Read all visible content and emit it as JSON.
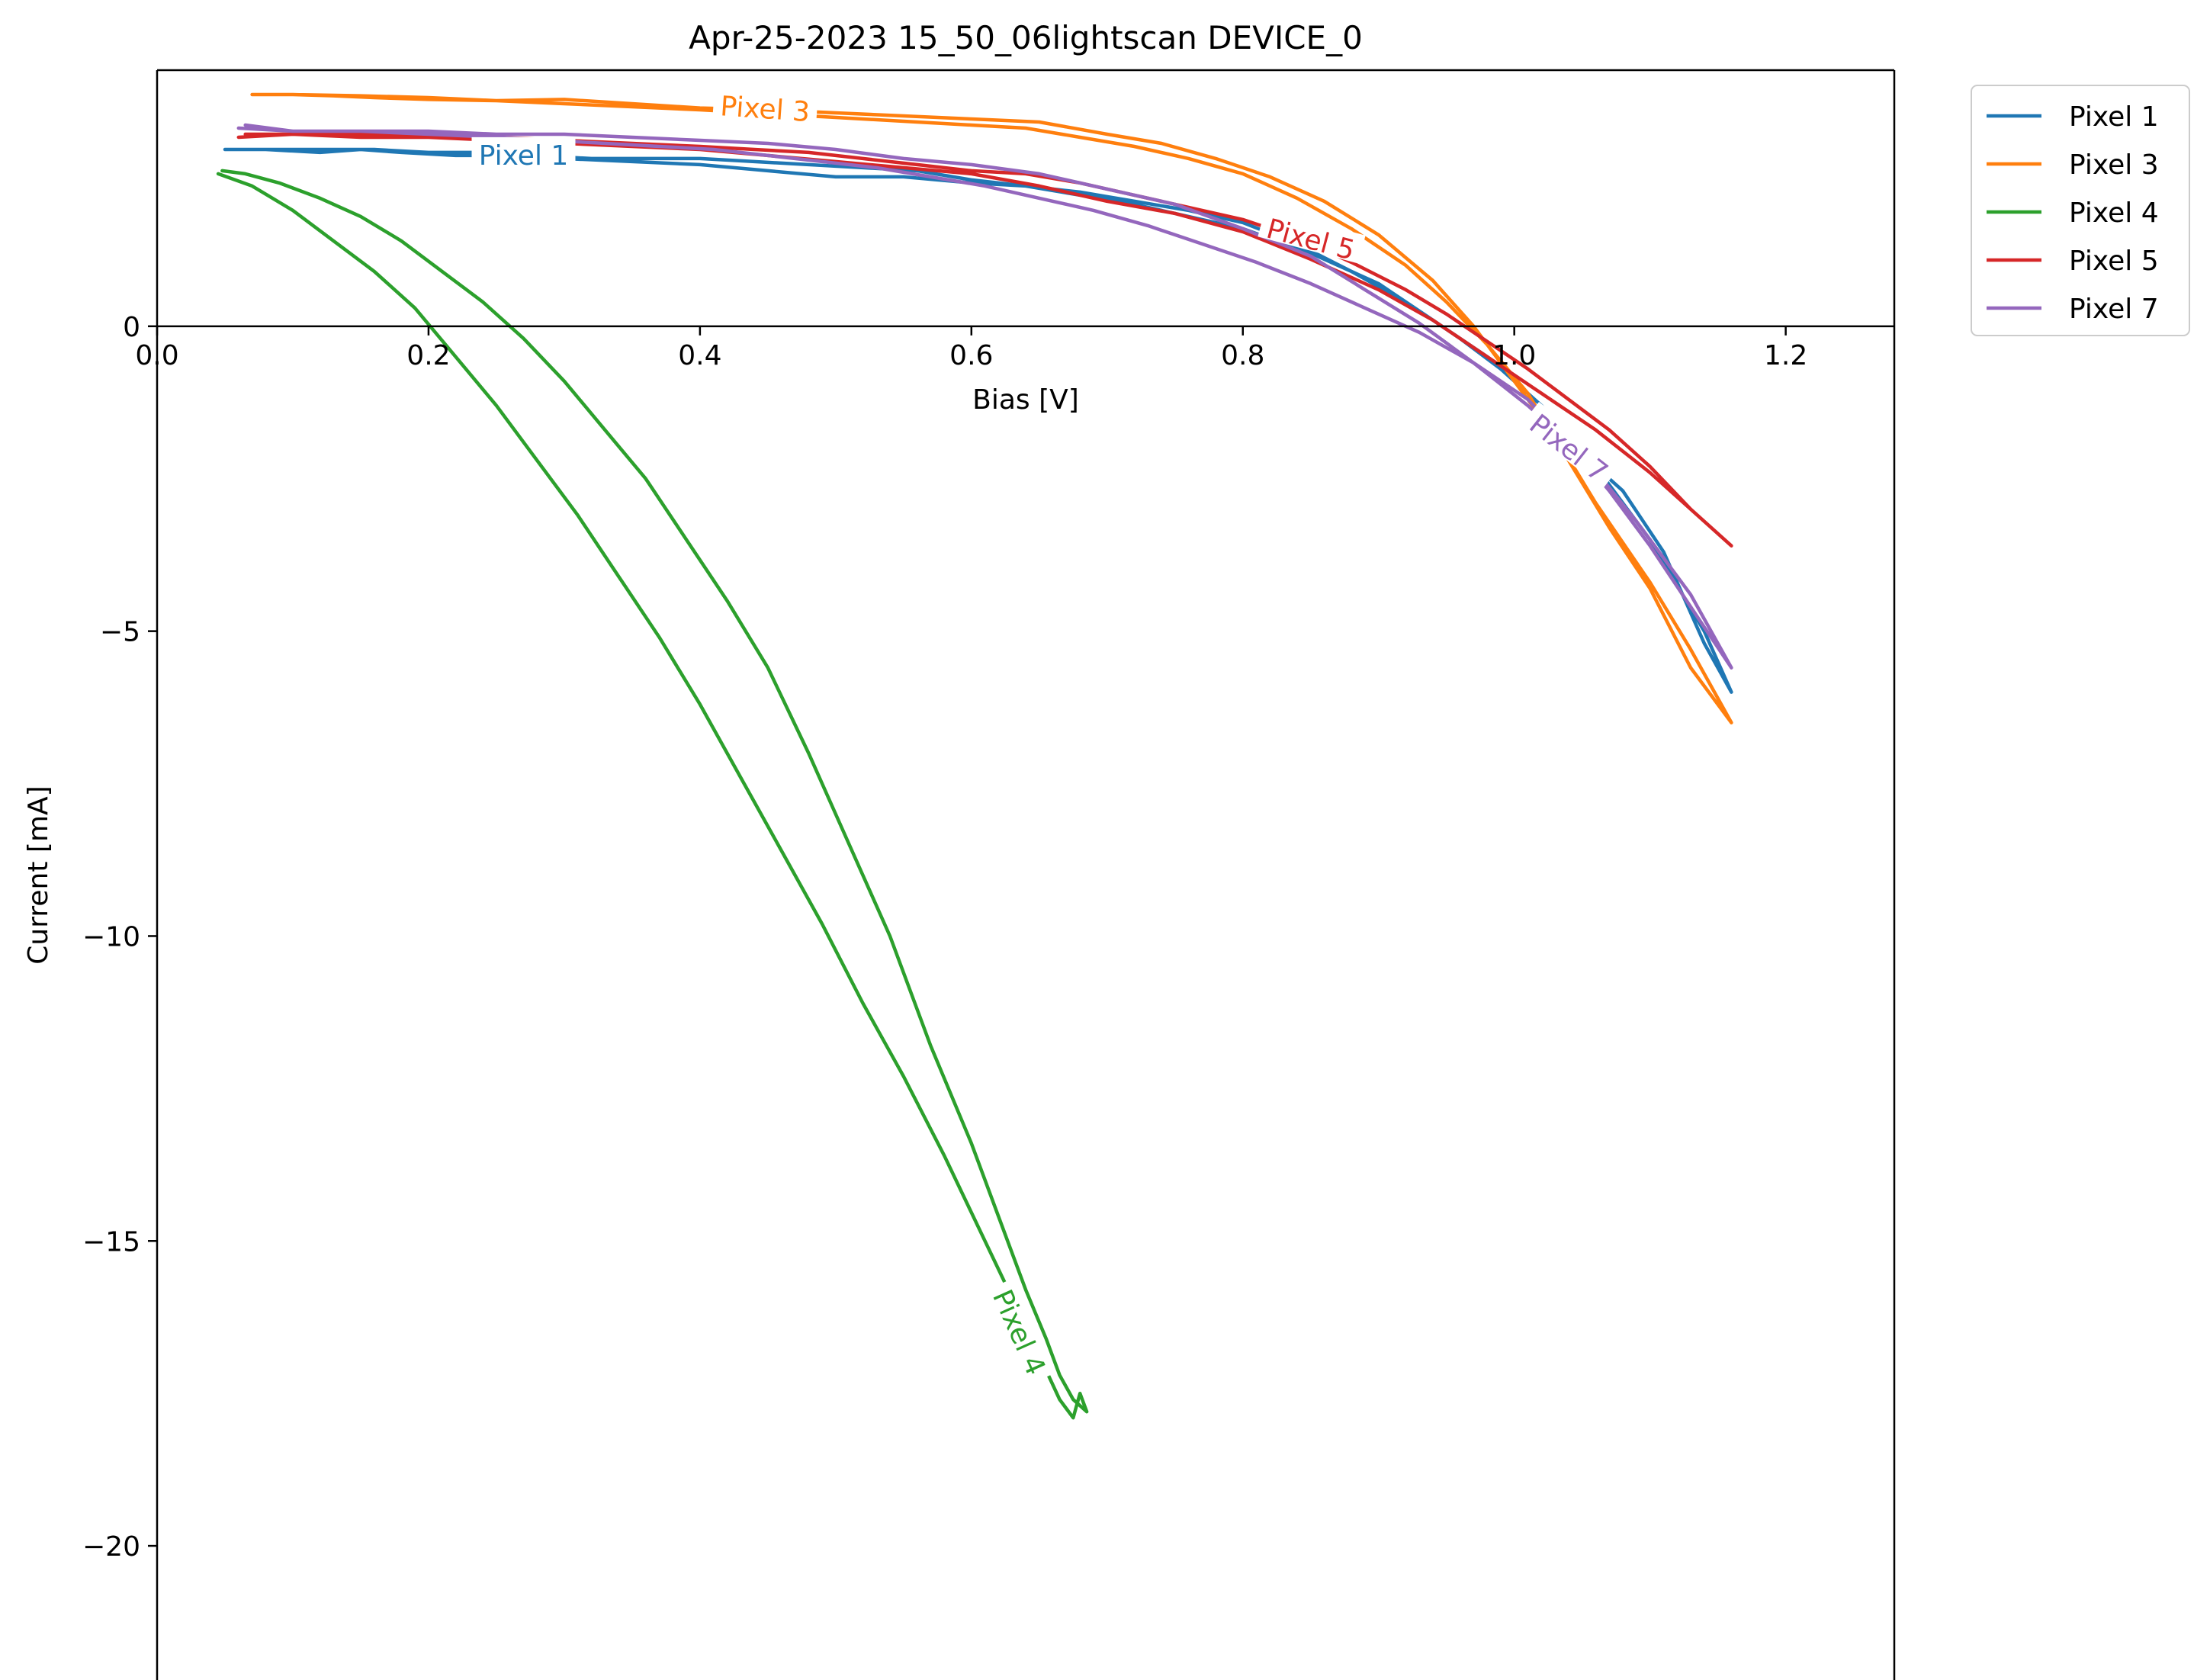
{
  "chart_data": {
    "type": "line",
    "title": "Apr-25-2023 15_50_06lightscan DEVICE_0",
    "xlabel": "Bias [V]",
    "ylabel": "Current [mA]",
    "xlim": [
      0.0,
      1.28
    ],
    "ylim": [
      -22.2,
      4.2
    ],
    "xticks": [
      0.0,
      0.2,
      0.4,
      0.6,
      0.8,
      1.0,
      1.2
    ],
    "xtick_labels": [
      "0.0",
      "0.2",
      "0.4",
      "0.6",
      "0.8",
      "1.0",
      "1.2"
    ],
    "yticks": [
      0,
      -5,
      -10,
      -15,
      -20
    ],
    "ytick_labels": [
      "0",
      "−5",
      "−10",
      "−15",
      "−20"
    ],
    "grid": false,
    "legend_position": "outside-top-right",
    "series": [
      {
        "name": "Pixel 1",
        "color": "#1f77b4",
        "inline_label": "Pixel 1",
        "label_at": [
          0.27,
          2.8
        ],
        "label_angle": 0,
        "x": [
          0.05,
          0.08,
          0.12,
          0.15,
          0.18,
          0.22,
          0.26,
          0.3,
          0.35,
          0.4,
          0.45,
          0.5,
          0.55,
          0.6,
          0.64,
          0.68,
          0.72,
          0.76,
          0.8,
          0.85,
          0.9,
          0.94,
          0.98,
          1.02,
          1.06,
          1.1,
          1.14,
          1.16,
          1.14,
          1.11,
          1.08,
          1.05,
          1.02,
          0.99,
          0.96,
          0.92,
          0.88,
          0.84,
          0.8,
          0.76,
          0.72,
          0.68,
          0.64,
          0.6,
          0.56,
          0.52,
          0.48,
          0.44,
          0.4,
          0.36,
          0.32,
          0.28,
          0.24,
          0.2,
          0.16,
          0.12,
          0.08,
          0.055
        ],
        "y": [
          2.9,
          2.9,
          2.85,
          2.9,
          2.85,
          2.8,
          2.8,
          2.75,
          2.7,
          2.65,
          2.55,
          2.45,
          2.45,
          2.35,
          2.3,
          2.15,
          2.0,
          1.8,
          1.6,
          1.2,
          0.7,
          0.1,
          -0.5,
          -1.3,
          -2.3,
          -3.5,
          -5.0,
          -6.0,
          -5.2,
          -3.7,
          -2.7,
          -2.1,
          -1.3,
          -0.7,
          -0.2,
          0.4,
          0.9,
          1.35,
          1.7,
          1.9,
          2.05,
          2.2,
          2.3,
          2.4,
          2.55,
          2.6,
          2.65,
          2.7,
          2.75,
          2.75,
          2.75,
          2.8,
          2.85,
          2.85,
          2.9,
          2.9,
          2.9,
          2.9
        ]
      },
      {
        "name": "Pixel 3",
        "color": "#ff7f0e",
        "inline_label": "Pixel 3",
        "label_at": [
          0.448,
          3.56
        ],
        "label_angle": 4,
        "x": [
          0.07,
          0.1,
          0.13,
          0.16,
          0.2,
          0.25,
          0.3,
          0.35,
          0.4,
          0.45,
          0.5,
          0.55,
          0.6,
          0.65,
          0.7,
          0.74,
          0.78,
          0.82,
          0.86,
          0.9,
          0.94,
          0.97,
          1.0,
          1.03,
          1.06,
          1.1,
          1.13,
          1.16,
          1.13,
          1.1,
          1.07,
          1.04,
          1.01,
          0.98,
          0.95,
          0.92,
          0.88,
          0.84,
          0.8,
          0.76,
          0.72,
          0.68,
          0.64,
          0.6,
          0.56,
          0.52,
          0.48,
          0.44,
          0.4,
          0.35,
          0.3,
          0.25,
          0.2,
          0.15,
          0.1,
          0.07
        ],
        "y": [
          3.8,
          3.8,
          3.78,
          3.75,
          3.72,
          3.7,
          3.72,
          3.65,
          3.58,
          3.55,
          3.5,
          3.45,
          3.4,
          3.35,
          3.15,
          3.0,
          2.75,
          2.45,
          2.05,
          1.5,
          0.75,
          0.0,
          -0.9,
          -1.8,
          -2.9,
          -4.2,
          -5.3,
          -6.5,
          -5.6,
          -4.3,
          -3.3,
          -2.2,
          -1.1,
          -0.3,
          0.4,
          1.0,
          1.6,
          2.1,
          2.5,
          2.75,
          2.95,
          3.1,
          3.25,
          3.3,
          3.35,
          3.4,
          3.45,
          3.5,
          3.55,
          3.6,
          3.65,
          3.7,
          3.75,
          3.78,
          3.8,
          3.8
        ]
      },
      {
        "name": "Pixel 4",
        "color": "#2ca02c",
        "inline_label": "Pixel 4",
        "label_at": [
          0.635,
          -16.5
        ],
        "label_angle": 66,
        "x": [
          0.045,
          0.07,
          0.1,
          0.13,
          0.16,
          0.19,
          0.22,
          0.25,
          0.28,
          0.31,
          0.34,
          0.37,
          0.4,
          0.43,
          0.46,
          0.49,
          0.52,
          0.55,
          0.58,
          0.61,
          0.64,
          0.665,
          0.675,
          0.68,
          0.685,
          0.675,
          0.665,
          0.655,
          0.64,
          0.62,
          0.6,
          0.57,
          0.54,
          0.51,
          0.48,
          0.45,
          0.42,
          0.39,
          0.36,
          0.33,
          0.3,
          0.27,
          0.24,
          0.21,
          0.18,
          0.15,
          0.12,
          0.09,
          0.065,
          0.048
        ],
        "y": [
          2.5,
          2.3,
          1.9,
          1.4,
          0.9,
          0.3,
          -0.5,
          -1.3,
          -2.2,
          -3.1,
          -4.1,
          -5.1,
          -6.2,
          -7.4,
          -8.6,
          -9.8,
          -11.1,
          -12.3,
          -13.6,
          -15.0,
          -16.4,
          -17.6,
          -17.9,
          -17.5,
          -17.8,
          -17.6,
          -17.2,
          -16.6,
          -15.8,
          -14.6,
          -13.4,
          -11.8,
          -10.0,
          -8.5,
          -7.0,
          -5.6,
          -4.5,
          -3.5,
          -2.5,
          -1.7,
          -0.9,
          -0.2,
          0.4,
          0.9,
          1.4,
          1.8,
          2.1,
          2.35,
          2.5,
          2.55
        ]
      },
      {
        "name": "Pixel 5",
        "color": "#d62728",
        "inline_label": "Pixel 5",
        "label_at": [
          0.85,
          1.42
        ],
        "label_angle": 15,
        "x": [
          0.06,
          0.1,
          0.15,
          0.2,
          0.25,
          0.3,
          0.35,
          0.4,
          0.45,
          0.5,
          0.55,
          0.6,
          0.65,
          0.7,
          0.75,
          0.8,
          0.85,
          0.9,
          0.94,
          0.98,
          1.02,
          1.06,
          1.1,
          1.13,
          1.16,
          1.13,
          1.1,
          1.07,
          1.04,
          1.01,
          0.98,
          0.95,
          0.92,
          0.88,
          0.84,
          0.8,
          0.76,
          0.72,
          0.68,
          0.64,
          0.6,
          0.56,
          0.52,
          0.48,
          0.44,
          0.4,
          0.35,
          0.3,
          0.25,
          0.2,
          0.15,
          0.1,
          0.065
        ],
        "y": [
          3.1,
          3.15,
          3.1,
          3.1,
          3.05,
          3.0,
          2.95,
          2.9,
          2.8,
          2.7,
          2.6,
          2.5,
          2.3,
          2.05,
          1.85,
          1.55,
          1.1,
          0.6,
          0.1,
          -0.5,
          -1.1,
          -1.7,
          -2.4,
          -3.0,
          -3.6,
          -3.0,
          -2.3,
          -1.7,
          -1.2,
          -0.7,
          -0.25,
          0.2,
          0.6,
          1.05,
          1.45,
          1.75,
          1.95,
          2.15,
          2.35,
          2.5,
          2.55,
          2.65,
          2.75,
          2.85,
          2.9,
          2.95,
          3.0,
          3.05,
          3.1,
          3.1,
          3.15,
          3.15,
          3.15
        ]
      },
      {
        "name": "Pixel 7",
        "color": "#9467bd",
        "inline_label": "Pixel 7",
        "label_at": [
          1.04,
          -2.0
        ],
        "label_angle": 38,
        "x": [
          0.06,
          0.1,
          0.15,
          0.2,
          0.25,
          0.3,
          0.35,
          0.4,
          0.45,
          0.5,
          0.55,
          0.6,
          0.65,
          0.7,
          0.75,
          0.8,
          0.85,
          0.89,
          0.93,
          0.97,
          1.01,
          1.05,
          1.09,
          1.13,
          1.16,
          1.13,
          1.1,
          1.07,
          1.04,
          1.01,
          0.97,
          0.93,
          0.89,
          0.85,
          0.81,
          0.77,
          0.73,
          0.69,
          0.65,
          0.61,
          0.57,
          0.53,
          0.49,
          0.45,
          0.41,
          0.37,
          0.33,
          0.29,
          0.25,
          0.2,
          0.15,
          0.1,
          0.065
        ],
        "y": [
          3.25,
          3.2,
          3.2,
          3.2,
          3.15,
          3.15,
          3.1,
          3.05,
          3.0,
          2.9,
          2.75,
          2.65,
          2.5,
          2.25,
          2.0,
          1.6,
          1.15,
          0.6,
          0.05,
          -0.6,
          -1.3,
          -2.1,
          -3.2,
          -4.4,
          -5.6,
          -4.6,
          -3.6,
          -2.7,
          -1.9,
          -1.2,
          -0.6,
          -0.1,
          0.3,
          0.7,
          1.05,
          1.35,
          1.65,
          1.9,
          2.1,
          2.3,
          2.45,
          2.6,
          2.7,
          2.8,
          2.9,
          2.95,
          3.0,
          3.05,
          3.1,
          3.15,
          3.2,
          3.2,
          3.3
        ]
      }
    ]
  }
}
